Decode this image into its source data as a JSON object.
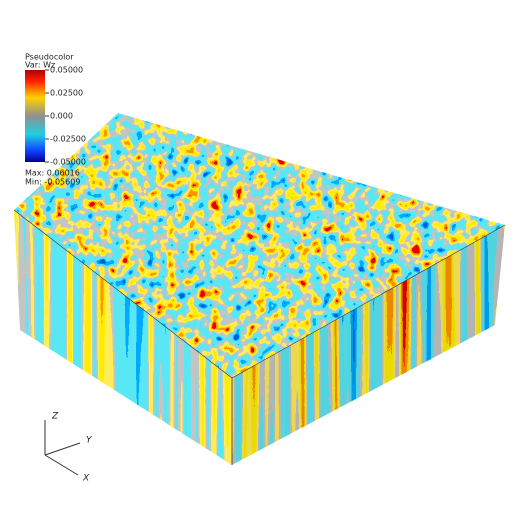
{
  "legend": {
    "title": "Pseudocolor",
    "variable": "Var: Wz",
    "ticks": [
      "0.05000",
      "0.02500",
      "0.000",
      "-0.02500",
      "-0.05000"
    ],
    "max": "Max: 0.06016",
    "min": "Min: -0.05609"
  },
  "axes": {
    "z": "Z",
    "y": "Y",
    "x": "X"
  }
}
